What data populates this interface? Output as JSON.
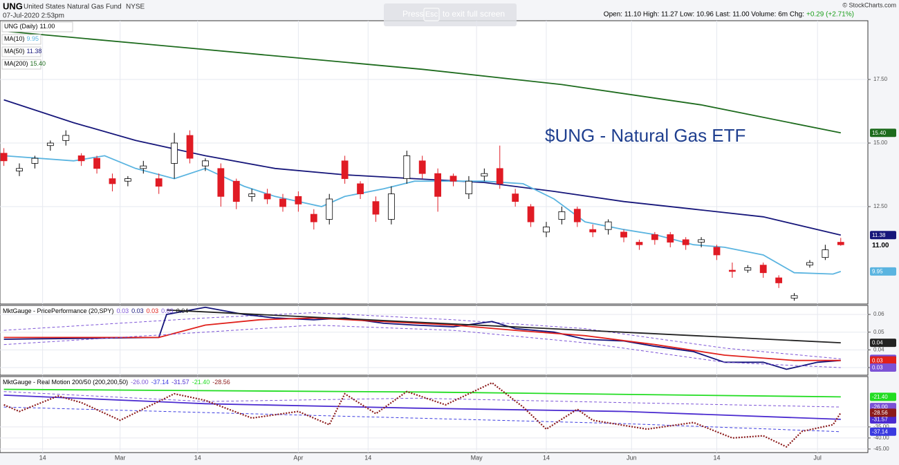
{
  "header": {
    "symbol": "UNG",
    "name": "United States Natural Gas Fund",
    "exchange": "NYSE",
    "date": "07-Jul-2020 2:53pm",
    "quote": "Open: 11.10 High: 11.27 Low: 10.96 Last: 11.00 Volume: 6m Chg:",
    "change": "+0.29 (+2.71%)",
    "copyright": "© StockCharts.com",
    "overlay": "Press",
    "overlay_key": "Esc",
    "overlay_rest": "to exit full screen"
  },
  "chart_data": [
    {
      "type": "candlestick",
      "title": "$UNG - Natural Gas ETF",
      "legend": "UNG (Daily)",
      "legend_value": "11.00",
      "up_color": "#ffffff",
      "down_color": "#e01b24",
      "x": [
        0,
        2,
        4,
        6,
        8,
        10,
        12,
        14,
        16,
        18,
        20,
        22,
        24,
        26,
        28,
        30,
        32,
        34,
        36,
        38,
        40,
        42,
        44,
        46,
        48,
        50,
        52,
        54,
        56,
        58,
        60,
        62,
        64,
        66,
        68,
        70,
        72,
        74,
        76,
        78,
        80,
        82,
        84,
        86,
        88,
        90,
        92,
        94,
        96,
        98,
        100,
        102,
        104,
        106,
        108
      ],
      "open": [
        14.6,
        13.9,
        14.2,
        14.9,
        15.1,
        14.5,
        14.4,
        13.6,
        13.5,
        14.0,
        13.6,
        14.2,
        15.3,
        14.1,
        14.0,
        13.5,
        12.9,
        13.0,
        12.8,
        12.9,
        12.2,
        12.0,
        14.3,
        13.4,
        12.7,
        12.0,
        13.6,
        14.3,
        13.8,
        13.7,
        13.0,
        13.7,
        14.0,
        13.0,
        12.5,
        11.5,
        12.0,
        12.4,
        11.6,
        11.6,
        11.5,
        11.1,
        11.4,
        11.4,
        11.2,
        11.1,
        10.9,
        10.0,
        10.0,
        10.2,
        9.7,
        8.9,
        10.2,
        10.5,
        11.1
      ],
      "high": [
        14.8,
        14.2,
        14.5,
        15.1,
        15.5,
        14.6,
        14.5,
        13.8,
        13.7,
        14.3,
        13.8,
        15.4,
        15.5,
        14.4,
        14.2,
        13.6,
        13.2,
        13.2,
        13.0,
        13.1,
        12.4,
        13.0,
        14.5,
        13.5,
        12.9,
        13.3,
        14.7,
        14.5,
        14.0,
        13.8,
        13.7,
        14.0,
        14.9,
        13.2,
        12.6,
        11.9,
        12.5,
        12.5,
        11.8,
        12.0,
        11.6,
        11.2,
        11.5,
        11.5,
        11.3,
        11.3,
        11.0,
        10.3,
        10.2,
        10.3,
        9.8,
        9.1,
        10.4,
        11.0,
        11.27
      ],
      "low": [
        14.1,
        13.7,
        14.0,
        14.7,
        14.9,
        14.1,
        13.8,
        13.1,
        13.3,
        13.8,
        13.0,
        13.6,
        14.2,
        13.9,
        12.5,
        12.4,
        12.7,
        12.6,
        12.3,
        12.3,
        11.6,
        11.8,
        13.4,
        12.8,
        11.9,
        11.8,
        13.4,
        13.6,
        12.3,
        13.3,
        12.8,
        13.5,
        13.2,
        12.5,
        11.7,
        11.3,
        11.8,
        11.7,
        11.3,
        11.4,
        11.1,
        10.8,
        11.0,
        10.9,
        10.8,
        10.9,
        10.4,
        9.7,
        9.9,
        9.7,
        9.3,
        8.8,
        10.1,
        10.4,
        10.96
      ],
      "close": [
        14.3,
        14.0,
        14.4,
        15.0,
        15.3,
        14.3,
        14.0,
        13.4,
        13.6,
        14.1,
        13.3,
        15.0,
        14.4,
        14.3,
        12.9,
        12.7,
        13.0,
        12.8,
        12.5,
        12.6,
        11.9,
        12.8,
        13.6,
        13.0,
        12.2,
        13.0,
        14.5,
        13.8,
        12.9,
        13.5,
        13.5,
        13.8,
        13.4,
        12.7,
        11.9,
        11.7,
        12.3,
        11.9,
        11.5,
        11.9,
        11.3,
        11.0,
        11.2,
        11.1,
        11.0,
        11.2,
        10.6,
        9.95,
        10.1,
        9.9,
        9.5,
        9.0,
        10.3,
        10.8,
        11.0
      ],
      "xlim": [
        -0.5,
        111.5
      ],
      "xticks": [
        {
          "value": 5,
          "label": "14"
        },
        {
          "value": 15,
          "label": "Mar"
        },
        {
          "value": 25,
          "label": "14"
        },
        {
          "value": 38,
          "label": "Apr"
        },
        {
          "value": 47,
          "label": "14"
        },
        {
          "value": 61,
          "label": "May"
        },
        {
          "value": 70,
          "label": "14"
        },
        {
          "value": 81,
          "label": "Jun"
        },
        {
          "value": 92,
          "label": "14"
        },
        {
          "value": 105,
          "label": "Jul"
        }
      ],
      "ylim": [
        8.67,
        19.81
      ],
      "yticks": [
        {
          "value": 17.5,
          "label": "17.50"
        },
        {
          "value": 15,
          "label": "15.00"
        },
        {
          "value": 12.5,
          "label": "12.50"
        }
      ],
      "grid": true,
      "series": [
        {
          "name": "MA(50)",
          "value_label": "11.38",
          "color": "#16167a",
          "x": [
            0,
            9,
            17,
            26,
            35,
            44,
            53,
            62,
            71,
            80,
            89,
            98,
            108
          ],
          "values": [
            16.7,
            15.8,
            15.1,
            14.5,
            14.0,
            13.75,
            13.6,
            13.45,
            13.1,
            12.7,
            12.4,
            12.1,
            11.38
          ]
        },
        {
          "name": "MA(10)",
          "value_label": "9.95",
          "color": "#5ab4e0",
          "x": [
            0,
            9,
            13,
            17,
            22,
            26,
            31,
            35,
            41,
            44,
            49,
            53,
            58,
            62,
            67,
            71,
            75,
            80,
            84,
            89,
            93,
            98,
            102,
            107,
            108
          ],
          "values": [
            14.5,
            14.3,
            14.5,
            14.0,
            13.6,
            14.0,
            13.3,
            12.9,
            12.5,
            12.9,
            13.2,
            13.5,
            13.5,
            13.5,
            13.4,
            12.8,
            11.9,
            11.6,
            11.4,
            11.0,
            10.9,
            10.6,
            9.9,
            9.85,
            9.95
          ]
        },
        {
          "name": "MA(200)",
          "value_label": "15.40",
          "color": "#1d6b1d",
          "x": [
            0,
            18,
            36,
            54,
            72,
            90,
            108
          ],
          "values": [
            19.4,
            18.9,
            18.4,
            17.9,
            17.3,
            16.5,
            15.4
          ]
        }
      ]
    },
    {
      "type": "line",
      "title": "MktGauge - PricePerformance (20,SPY)",
      "ylim": [
        0.0257,
        0.0651
      ],
      "yticks": [
        0.03,
        0.04,
        0.05,
        0.06
      ],
      "grid": true,
      "series": [
        {
          "value_label": "0.03",
          "color": "#7b52d6",
          "dash": "dashed",
          "x": [
            0,
            26,
            40,
            58,
            75,
            93,
            108
          ],
          "values": [
            0.051,
            0.058,
            0.061,
            0.057,
            0.052,
            0.041,
            0.0349
          ]
        },
        {
          "value_label": "0.03",
          "color": "#12127a",
          "x": [
            0,
            20,
            21,
            26,
            31,
            35,
            40,
            44,
            49,
            53,
            58,
            63,
            66,
            71,
            75,
            80,
            84,
            89,
            93,
            98,
            101,
            105,
            108
          ],
          "values": [
            0.046,
            0.047,
            0.06,
            0.064,
            0.06,
            0.058,
            0.057,
            0.058,
            0.055,
            0.054,
            0.053,
            0.056,
            0.052,
            0.05,
            0.046,
            0.045,
            0.042,
            0.039,
            0.033,
            0.033,
            0.029,
            0.033,
            0.034
          ]
        },
        {
          "value_label": "0.03",
          "color": "#e0201a",
          "x": [
            0,
            20,
            26,
            33,
            40,
            49,
            58,
            66,
            75,
            84,
            93,
            102,
            108
          ],
          "values": [
            0.047,
            0.047,
            0.054,
            0.057,
            0.058,
            0.056,
            0.054,
            0.051,
            0.048,
            0.043,
            0.037,
            0.034,
            0.034
          ]
        },
        {
          "value_label": "0.03",
          "color": "#7b52d6",
          "dash": "dashed",
          "x": [
            0,
            26,
            40,
            58,
            75,
            93,
            108
          ],
          "values": [
            0.043,
            0.05,
            0.054,
            0.051,
            0.044,
            0.033,
            0.03
          ]
        },
        {
          "value_label": "0.04",
          "color": "#222222",
          "x": [
            21,
            108
          ],
          "values": [
            0.0625,
            0.044
          ]
        }
      ]
    },
    {
      "type": "line",
      "title": "MktGauge - Real Motion 200/50 (200,200,50)",
      "ylim": [
        -46.6,
        -12.2
      ],
      "yticks": [
        {
          "value": -35,
          "label": "-35.00"
        },
        {
          "value": -40,
          "label": "-40.00"
        },
        {
          "value": -45,
          "label": "-45.00"
        }
      ],
      "grid": true,
      "series": [
        {
          "value_label": "-26.00",
          "color": "#7b52d6",
          "dash": "dashed",
          "x": [
            0,
            26,
            53,
            80,
            108
          ],
          "values": [
            -19,
            -23.5,
            -22,
            -24,
            -26.0
          ]
        },
        {
          "value_label": "-37.14",
          "color": "#3a3ae0",
          "dash": "dashed",
          "x": [
            0,
            26,
            53,
            80,
            108
          ],
          "values": [
            -26,
            -28.5,
            -31,
            -33.5,
            -37.14
          ]
        },
        {
          "value_label": "-31.57",
          "color": "#4b2bd0",
          "x": [
            0,
            26,
            53,
            80,
            108
          ],
          "values": [
            -20.6,
            -24.5,
            -26.5,
            -28.0,
            -31.57
          ]
        },
        {
          "value_label": "-21.40",
          "color": "#22dd22",
          "x": [
            0,
            54,
            108
          ],
          "values": [
            -18.0,
            -19.2,
            -21.4
          ]
        },
        {
          "value_label": "-28.56",
          "color": "#8b1a1a",
          "dash": "dotted",
          "x": [
            0,
            2,
            7,
            10,
            15,
            22,
            26,
            32,
            38,
            42,
            44,
            48,
            52,
            57,
            63,
            67,
            70,
            74,
            76,
            83,
            89,
            94,
            98,
            101,
            103,
            107,
            108
          ],
          "values": [
            -25,
            -28,
            -21,
            -24,
            -32,
            -20,
            -23,
            -31,
            -28,
            -34,
            -20,
            -29,
            -19,
            -25,
            -15,
            -26,
            -36,
            -27,
            -32,
            -36,
            -33,
            -40,
            -39,
            -44,
            -37,
            -34,
            -28.56
          ]
        }
      ]
    }
  ]
}
